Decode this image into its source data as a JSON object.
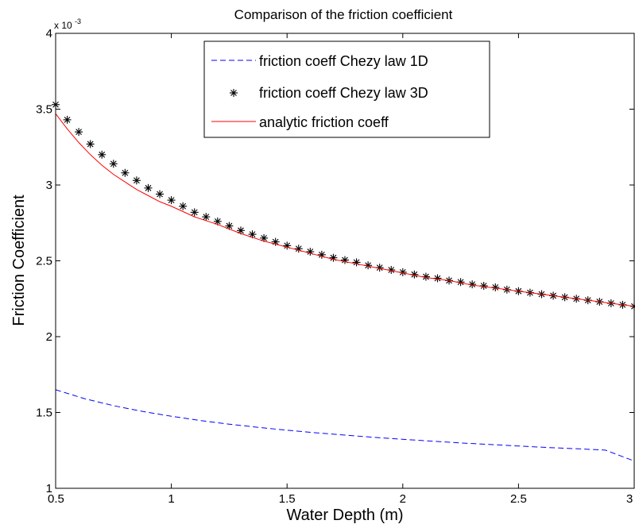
{
  "chart_data": {
    "type": "line",
    "title": "Comparison of the friction coefficient",
    "xlabel": "Water Depth (m)",
    "ylabel": "Friction Coefficient",
    "y_multiplier": "x 10",
    "y_multiplier_exponent": "-3",
    "xlim": [
      0.5,
      3
    ],
    "ylim": [
      1,
      4
    ],
    "xticks": [
      0.5,
      1,
      1.5,
      2,
      2.5,
      3
    ],
    "xtick_labels": [
      "0.5",
      "1",
      "1.5",
      "2",
      "2.5",
      "3"
    ],
    "yticks": [
      1,
      1.5,
      2,
      2.5,
      3,
      3.5,
      4
    ],
    "ytick_labels": [
      "1",
      "1.5",
      "2",
      "2.5",
      "3",
      "3.5",
      "4"
    ],
    "grid": false,
    "legend_position": "top-center",
    "series": [
      {
        "name": "friction coeff Chezy law 1D",
        "style": "dashed",
        "color": "#0000ff",
        "x": [
          0.5,
          0.625,
          0.75,
          0.875,
          1.0,
          1.125,
          1.25,
          1.375,
          1.5,
          1.625,
          1.75,
          1.875,
          2.0,
          2.125,
          2.25,
          2.375,
          2.5,
          2.625,
          2.75,
          2.875,
          3.0
        ],
        "y": [
          1.65,
          1.591,
          1.545,
          1.507,
          1.475,
          1.447,
          1.423,
          1.402,
          1.383,
          1.366,
          1.351,
          1.336,
          1.323,
          1.311,
          1.299,
          1.289,
          1.279,
          1.269,
          1.261,
          1.252,
          1.18
        ]
      },
      {
        "name": "friction coeff Chezy law 3D",
        "style": "marker-asterisk",
        "color": "#000000",
        "x": [
          0.5,
          0.55,
          0.6,
          0.65,
          0.7,
          0.75,
          0.8,
          0.85,
          0.9,
          0.95,
          1.0,
          1.05,
          1.1,
          1.15,
          1.2,
          1.25,
          1.3,
          1.35,
          1.4,
          1.45,
          1.5,
          1.55,
          1.6,
          1.65,
          1.7,
          1.75,
          1.8,
          1.85,
          1.9,
          1.95,
          2.0,
          2.05,
          2.1,
          2.15,
          2.2,
          2.25,
          2.3,
          2.35,
          2.4,
          2.45,
          2.5,
          2.55,
          2.6,
          2.65,
          2.7,
          2.75,
          2.8,
          2.85,
          2.9,
          2.95,
          3.0
        ],
        "y": [
          3.53,
          3.43,
          3.35,
          3.27,
          3.2,
          3.14,
          3.08,
          3.03,
          2.98,
          2.94,
          2.9,
          2.86,
          2.82,
          2.79,
          2.76,
          2.73,
          2.7,
          2.675,
          2.65,
          2.625,
          2.6,
          2.58,
          2.56,
          2.54,
          2.52,
          2.505,
          2.49,
          2.47,
          2.455,
          2.44,
          2.425,
          2.41,
          2.395,
          2.385,
          2.37,
          2.36,
          2.345,
          2.335,
          2.325,
          2.31,
          2.3,
          2.29,
          2.28,
          2.27,
          2.26,
          2.25,
          2.24,
          2.23,
          2.22,
          2.21,
          2.2
        ]
      },
      {
        "name": "analytic friction coeff",
        "style": "solid",
        "color": "#ff0000",
        "x": [
          0.5,
          0.55,
          0.6,
          0.65,
          0.7,
          0.75,
          0.8,
          0.85,
          0.9,
          0.95,
          1.0,
          1.1,
          1.2,
          1.3,
          1.4,
          1.5,
          1.6,
          1.7,
          1.8,
          1.9,
          2.0,
          2.1,
          2.2,
          2.3,
          2.4,
          2.5,
          2.6,
          2.7,
          2.8,
          2.9,
          3.0
        ],
        "y": [
          3.47,
          3.37,
          3.28,
          3.2,
          3.13,
          3.07,
          3.02,
          2.97,
          2.93,
          2.89,
          2.86,
          2.79,
          2.74,
          2.68,
          2.63,
          2.59,
          2.55,
          2.51,
          2.48,
          2.45,
          2.42,
          2.39,
          2.37,
          2.34,
          2.32,
          2.3,
          2.28,
          2.26,
          2.24,
          2.22,
          2.2
        ]
      }
    ]
  }
}
